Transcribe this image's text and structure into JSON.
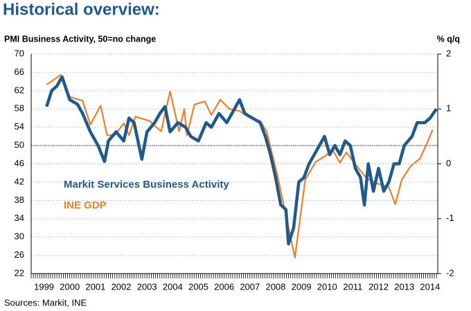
{
  "chart_data": {
    "type": "line",
    "title": "Historical overview:",
    "y_axis_label": "PMI Business Activity, 50=no change",
    "y2_axis_label": "% q/q",
    "source": "Sources: Markit, INE",
    "xlim": [
      1999,
      2014.8
    ],
    "xticks": [
      {
        "value": 1999.5,
        "label": "1999"
      },
      {
        "value": 2000.5,
        "label": "2000"
      },
      {
        "value": 2001.5,
        "label": "2001"
      },
      {
        "value": 2002.5,
        "label": "2002"
      },
      {
        "value": 2003.5,
        "label": "2003"
      },
      {
        "value": 2004.5,
        "label": "2004"
      },
      {
        "value": 2005.5,
        "label": "2005"
      },
      {
        "value": 2006.5,
        "label": "2006"
      },
      {
        "value": 2007.5,
        "label": "2007"
      },
      {
        "value": 2008.5,
        "label": "2008"
      },
      {
        "value": 2009.5,
        "label": "2009"
      },
      {
        "value": 2010.5,
        "label": "2010"
      },
      {
        "value": 2011.5,
        "label": "2011"
      },
      {
        "value": 2012.5,
        "label": "2012"
      },
      {
        "value": 2013.5,
        "label": "2013"
      },
      {
        "value": 2014.5,
        "label": "2014"
      }
    ],
    "ylim": [
      22,
      70
    ],
    "yticks": [
      22,
      26,
      30,
      34,
      38,
      42,
      46,
      50,
      54,
      58,
      62,
      66,
      70
    ],
    "y2lim": [
      -2,
      2
    ],
    "y2ticks": [
      -2,
      -1,
      0,
      1,
      2
    ],
    "reference_line": 50,
    "grid": true,
    "series": [
      {
        "name": "Markit Services Business Activity",
        "color": "#1f5a8c",
        "x": [
          1999.6,
          1999.8,
          2000.0,
          2000.2,
          2000.5,
          2000.8,
          2001.0,
          2001.3,
          2001.6,
          2001.85,
          2002.0,
          2002.3,
          2002.6,
          2002.8,
          2003.0,
          2003.3,
          2003.5,
          2003.8,
          2004.0,
          2004.2,
          2004.4,
          2004.7,
          2005.0,
          2005.2,
          2005.5,
          2005.8,
          2006.0,
          2006.3,
          2006.6,
          2006.9,
          2007.1,
          2007.3,
          2007.6,
          2007.9,
          2008.1,
          2008.3,
          2008.5,
          2008.7,
          2008.9,
          2009.0,
          2009.2,
          2009.4,
          2009.6,
          2009.8,
          2010.0,
          2010.2,
          2010.4,
          2010.6,
          2010.8,
          2011.0,
          2011.2,
          2011.4,
          2011.6,
          2011.8,
          2011.95,
          2012.1,
          2012.3,
          2012.5,
          2012.7,
          2012.9,
          2013.1,
          2013.3,
          2013.5,
          2013.8,
          2014.0,
          2014.3,
          2014.5,
          2014.75
        ],
        "values": [
          58.5,
          62,
          63,
          65,
          60,
          59,
          57,
          53,
          50,
          46.5,
          51,
          53,
          51,
          56,
          55,
          47,
          53,
          55,
          57,
          58.5,
          53,
          55,
          54,
          52,
          51,
          55,
          54,
          57,
          55,
          58,
          60,
          57,
          56,
          55,
          52,
          48,
          43,
          37,
          36,
          28.5,
          32,
          42,
          43,
          46,
          48,
          50,
          52,
          48,
          50,
          48,
          51,
          50,
          45,
          43,
          37,
          46,
          40,
          45,
          40,
          42,
          46,
          46,
          50,
          52,
          55,
          55,
          56,
          58
        ]
      },
      {
        "name": "INE GDP",
        "color": "#f07c2a",
        "axis": "y2",
        "x": [
          1999.6,
          2000.15,
          2000.5,
          2001.0,
          2001.3,
          2001.7,
          2001.95,
          2002.25,
          2002.6,
          2002.8,
          2003.05,
          2003.6,
          2004.05,
          2004.4,
          2004.75,
          2004.95,
          2005.05,
          2005.35,
          2005.75,
          2006.0,
          2006.35,
          2006.7,
          2007.1,
          2007.5,
          2007.9,
          2008.15,
          2008.55,
          2008.95,
          2009.25,
          2009.65,
          2010.05,
          2010.45,
          2010.7,
          2011.0,
          2011.25,
          2011.65,
          2012.05,
          2012.45,
          2012.9,
          2013.15,
          2013.4,
          2013.75,
          2014.1,
          2014.35,
          2014.6
        ],
        "values": [
          1.44,
          1.62,
          1.22,
          1.15,
          0.71,
          1.06,
          0.52,
          0.52,
          0.74,
          0.52,
          0.86,
          0.78,
          0.59,
          1.32,
          0.59,
          1.0,
          0.52,
          1.08,
          1.14,
          0.89,
          1.17,
          1.0,
          0.96,
          0.84,
          0.78,
          0.59,
          -0.17,
          -1.05,
          -1.71,
          -0.29,
          0.03,
          0.15,
          0.27,
          0.02,
          0.21,
          -0.04,
          -0.27,
          -0.36,
          -0.42,
          -0.74,
          -0.29,
          -0.04,
          0.09,
          0.34,
          0.62
        ]
      }
    ]
  }
}
